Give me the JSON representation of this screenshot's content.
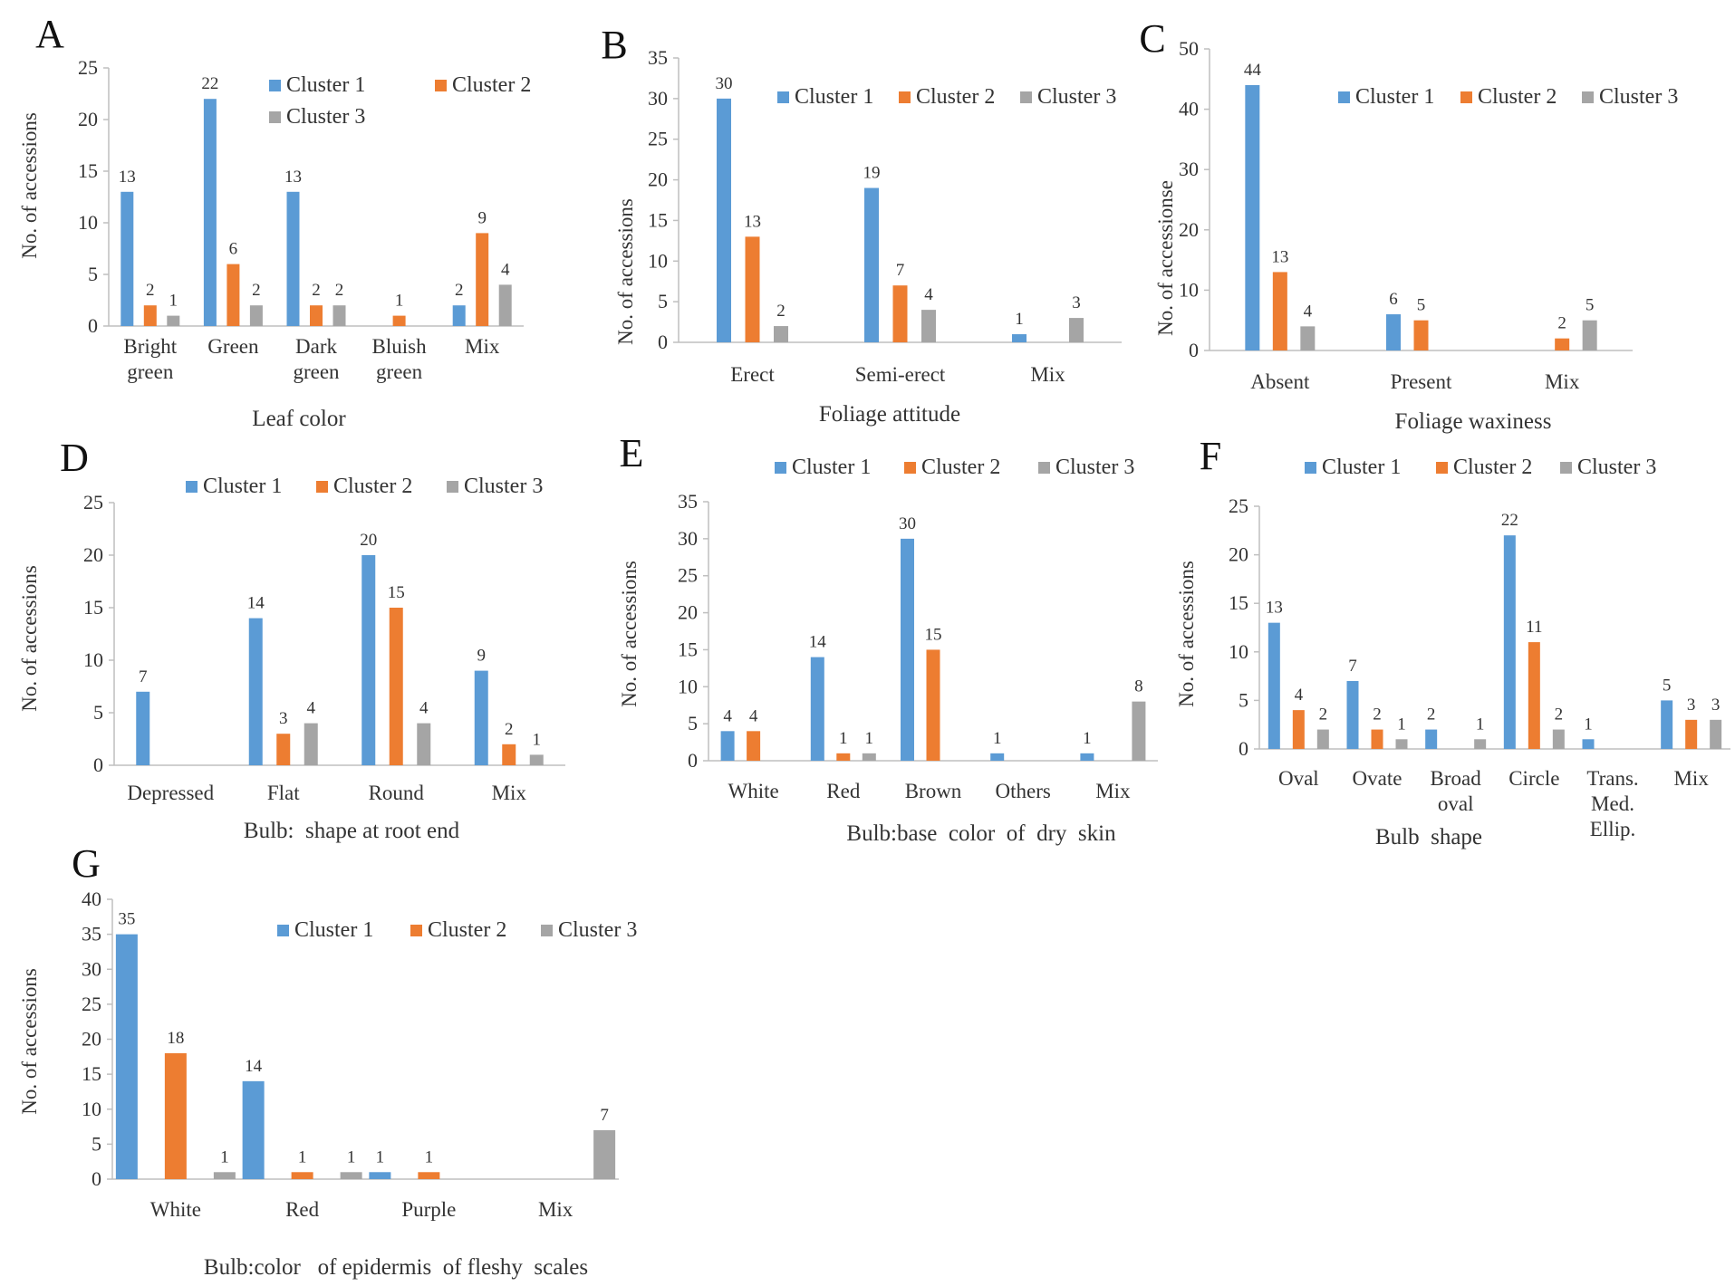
{
  "colors": {
    "cluster1": "#5b9bd5",
    "cluster2": "#ed7d31",
    "cluster3": "#a5a5a5",
    "axis": "#bfbfbf"
  },
  "chart_data": [
    {
      "panel": "A",
      "type": "bar",
      "categories": [
        "Bright green",
        "Green",
        "Dark green",
        "Bluish green",
        "Mix"
      ],
      "series": [
        {
          "name": "Cluster 1",
          "values": [
            13,
            22,
            13,
            null,
            2
          ]
        },
        {
          "name": "Cluster 2",
          "values": [
            2,
            6,
            2,
            1,
            9
          ]
        },
        {
          "name": "Cluster 3",
          "values": [
            1,
            2,
            2,
            null,
            4
          ]
        }
      ],
      "xlabel": "Leaf color",
      "ylabel": "No. of accessions",
      "ylim": [
        0,
        25
      ],
      "yticks": [
        0,
        5,
        10,
        15,
        20,
        25
      ],
      "legend": "top-right, two rows"
    },
    {
      "panel": "B",
      "type": "bar",
      "categories": [
        "Erect",
        "Semi-erect",
        "Mix"
      ],
      "series": [
        {
          "name": "Cluster 1",
          "values": [
            30,
            19,
            1
          ]
        },
        {
          "name": "Cluster 2",
          "values": [
            13,
            7,
            null
          ]
        },
        {
          "name": "Cluster 3",
          "values": [
            2,
            4,
            3
          ]
        }
      ],
      "xlabel": "Foliage attitude",
      "ylabel": "No. of accessions",
      "ylim": [
        0,
        35
      ],
      "yticks": [
        0,
        5,
        10,
        15,
        20,
        25,
        30,
        35
      ],
      "legend": "top"
    },
    {
      "panel": "C",
      "type": "bar",
      "categories": [
        "Absent",
        "Present",
        "Mix"
      ],
      "series": [
        {
          "name": "Cluster 1",
          "values": [
            44,
            6,
            null
          ]
        },
        {
          "name": "Cluster 2",
          "values": [
            13,
            5,
            2
          ]
        },
        {
          "name": "Cluster 3",
          "values": [
            4,
            null,
            5
          ]
        }
      ],
      "xlabel": "Foliage waxiness",
      "ylabel": "No. of accessionse",
      "ylim": [
        0,
        50
      ],
      "yticks": [
        0,
        10,
        20,
        30,
        40,
        50
      ],
      "legend": "top"
    },
    {
      "panel": "D",
      "type": "bar",
      "categories": [
        "Depressed",
        "Flat",
        "Round",
        "Mix"
      ],
      "series": [
        {
          "name": "Cluster 1",
          "values": [
            7,
            14,
            20,
            9
          ]
        },
        {
          "name": "Cluster 2",
          "values": [
            null,
            3,
            15,
            2
          ]
        },
        {
          "name": "Cluster 3",
          "values": [
            null,
            4,
            4,
            1
          ]
        }
      ],
      "xlabel": "Bulb:  shape at root end",
      "ylabel": "No. of accessions",
      "ylim": [
        0,
        25
      ],
      "yticks": [
        0,
        5,
        10,
        15,
        20,
        25
      ],
      "legend": "top"
    },
    {
      "panel": "E",
      "type": "bar",
      "categories": [
        "White",
        "Red",
        "Brown",
        "Others",
        "Mix"
      ],
      "series": [
        {
          "name": "Cluster 1",
          "values": [
            4,
            14,
            30,
            1,
            1
          ]
        },
        {
          "name": "Cluster 2",
          "values": [
            4,
            1,
            15,
            null,
            null
          ]
        },
        {
          "name": "Cluster 3",
          "values": [
            null,
            1,
            null,
            null,
            8
          ]
        }
      ],
      "xlabel": "Bulb:base  color  of  dry  skin",
      "ylabel": "No. of accessions",
      "ylim": [
        0,
        35
      ],
      "yticks": [
        0,
        5,
        10,
        15,
        20,
        25,
        30,
        35
      ],
      "legend": "top"
    },
    {
      "panel": "F",
      "type": "bar",
      "categories": [
        "Oval",
        "Ovate",
        "Broad oval",
        "Circle",
        "Trans. Med. Ellip.",
        "Mix"
      ],
      "series": [
        {
          "name": "Cluster 1",
          "values": [
            13,
            7,
            2,
            22,
            1,
            5
          ]
        },
        {
          "name": "Cluster 2",
          "values": [
            4,
            2,
            null,
            11,
            null,
            3
          ]
        },
        {
          "name": "Cluster 3",
          "values": [
            2,
            1,
            1,
            2,
            null,
            3
          ]
        }
      ],
      "xlabel": "Bulb  shape",
      "ylabel": "No. of accessions",
      "ylim": [
        0,
        25
      ],
      "yticks": [
        0,
        5,
        10,
        15,
        20,
        25
      ],
      "legend": "top"
    },
    {
      "panel": "G",
      "type": "bar",
      "categories": [
        "White",
        "Red",
        "Purple",
        "Mix"
      ],
      "series": [
        {
          "name": "Cluster 1",
          "values": [
            35,
            14,
            1,
            null
          ]
        },
        {
          "name": "Cluster 2",
          "values": [
            18,
            1,
            1,
            null
          ]
        },
        {
          "name": "Cluster 3",
          "values": [
            1,
            1,
            null,
            7
          ]
        }
      ],
      "xlabel": "Bulb:color   of epidermis  of fleshy  scales",
      "ylabel": "No. of accessions",
      "ylim": [
        0,
        40
      ],
      "yticks": [
        0,
        5,
        10,
        15,
        20,
        25,
        30,
        35,
        40
      ],
      "legend": "top"
    }
  ]
}
